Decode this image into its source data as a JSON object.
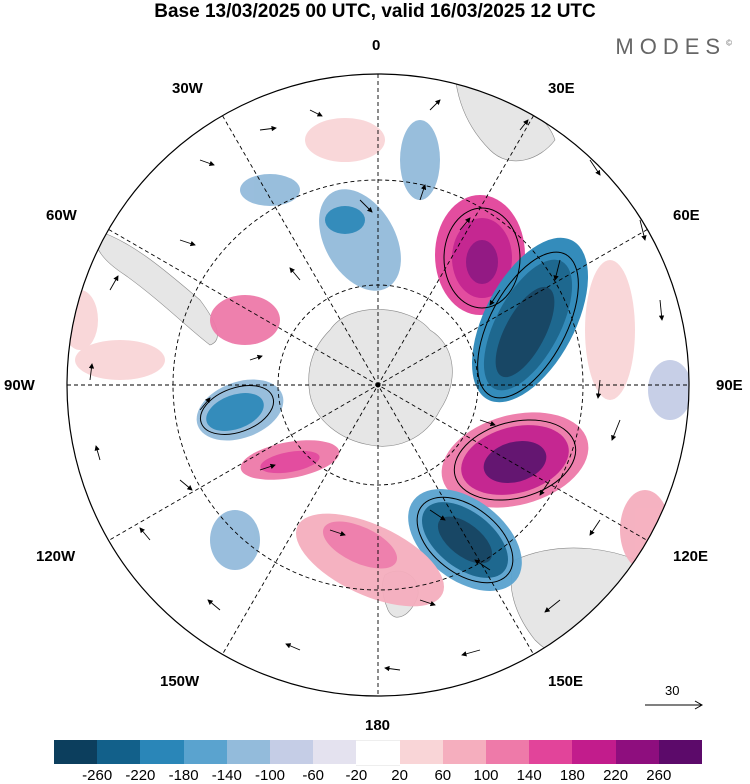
{
  "title": "Base 13/03/2025 00 UTC, valid 16/03/2025 12 UTC",
  "brand": "MODES",
  "brand_mark": "©",
  "longitude_labels": {
    "l0": "0",
    "l30e": "30E",
    "l60e": "60E",
    "l90e": "90E",
    "l120e": "120E",
    "l150e": "150E",
    "l180": "180",
    "l150w": "150W",
    "l120w": "120W",
    "l90w": "90W",
    "l60w": "60W",
    "l30w": "30W"
  },
  "reference_vector": "30",
  "colorbar": {
    "ticks": [
      "-260",
      "-220",
      "-180",
      "-140",
      "-100",
      "-60",
      "-20",
      "20",
      "60",
      "100",
      "140",
      "180",
      "220",
      "260"
    ],
    "colors": [
      "#0c3e5d",
      "#12608a",
      "#2a86b8",
      "#5aa3cf",
      "#93bbdb",
      "#c5cde6",
      "#e4e2ef",
      "#ffffff",
      "#f9d5d7",
      "#f5aebe",
      "#ee7aa9",
      "#e2449a",
      "#c21c8c",
      "#8e0e7e",
      "#5c0a6a"
    ]
  },
  "colors": {
    "land": "#e6e6e6",
    "ocean": "#ffffff",
    "grid": "#000000"
  }
}
